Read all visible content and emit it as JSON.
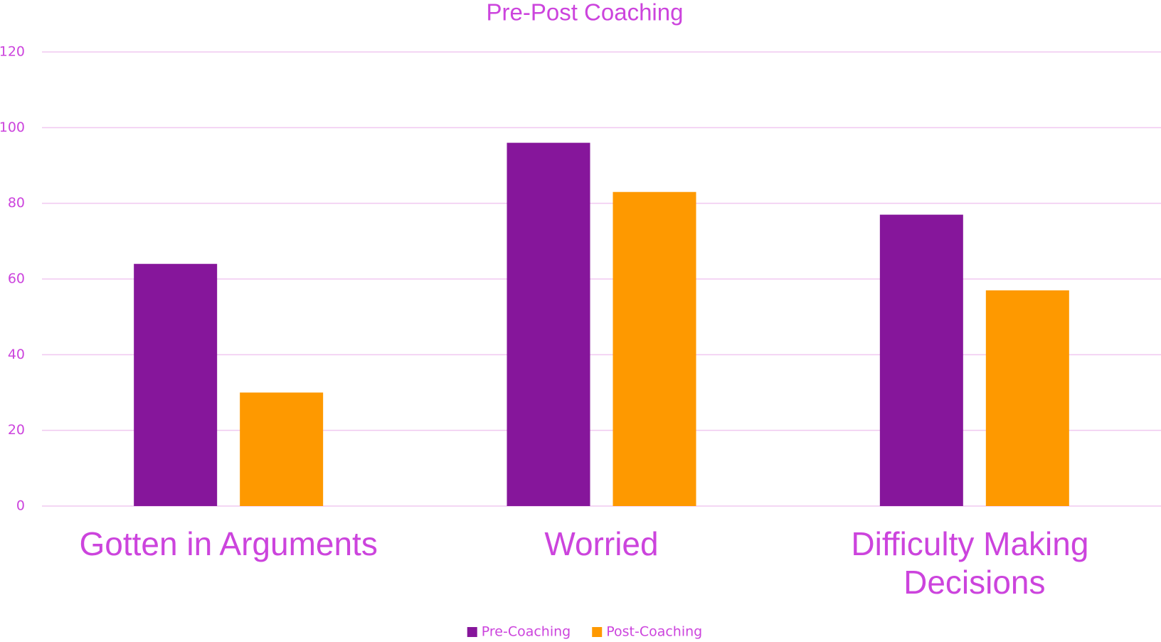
{
  "chart_data": {
    "type": "bar",
    "title": "Pre-Post Coaching",
    "categories": [
      "Gotten in Arguments",
      "Worried",
      "Difficulty Making Decisions"
    ],
    "series": [
      {
        "name": "Pre-Coaching",
        "color": "#86169b",
        "values": [
          64,
          96,
          77
        ]
      },
      {
        "name": "Post-Coaching",
        "color": "#fe9900",
        "values": [
          30,
          83,
          57
        ]
      }
    ],
    "ylim": [
      0,
      120
    ],
    "yticks": [
      0,
      20,
      40,
      60,
      80,
      100,
      120
    ],
    "grid": true,
    "legend": "bottom"
  }
}
